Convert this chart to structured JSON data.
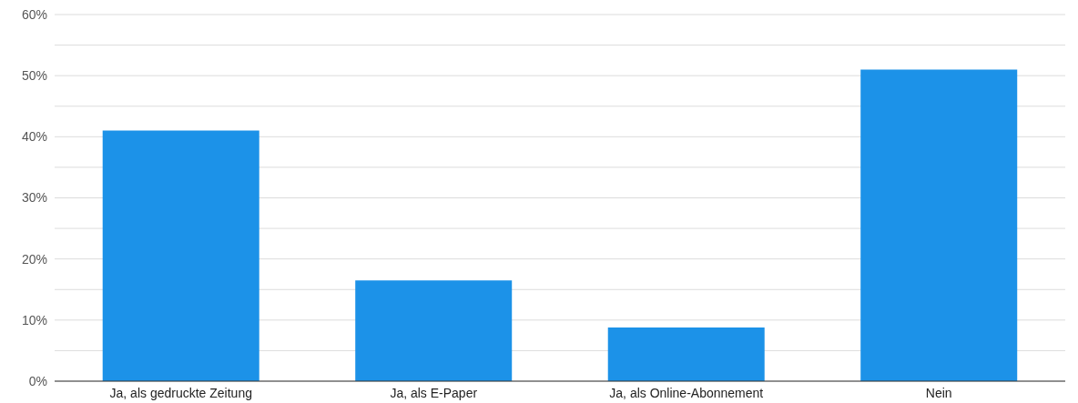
{
  "chart_data": {
    "type": "bar",
    "categories": [
      "Ja, als gedruckte Zeitung",
      "Ja, als E-Paper",
      "Ja, als Online-Abonnement",
      "Nein"
    ],
    "values": [
      41,
      16.5,
      8.8,
      51
    ],
    "color": "#1c92e8",
    "ylim": [
      0,
      60
    ],
    "yticks": [
      {
        "value": 0,
        "label": "0%"
      },
      {
        "value": 5,
        "label": null
      },
      {
        "value": 10,
        "label": "10%"
      },
      {
        "value": 15,
        "label": null
      },
      {
        "value": 20,
        "label": "20%"
      },
      {
        "value": 25,
        "label": null
      },
      {
        "value": 30,
        "label": "30%"
      },
      {
        "value": 35,
        "label": null
      },
      {
        "value": 40,
        "label": "40%"
      },
      {
        "value": 45,
        "label": null
      },
      {
        "value": 50,
        "label": "50%"
      },
      {
        "value": 55,
        "label": null
      },
      {
        "value": 60,
        "label": "60%"
      }
    ],
    "grid": "y"
  }
}
